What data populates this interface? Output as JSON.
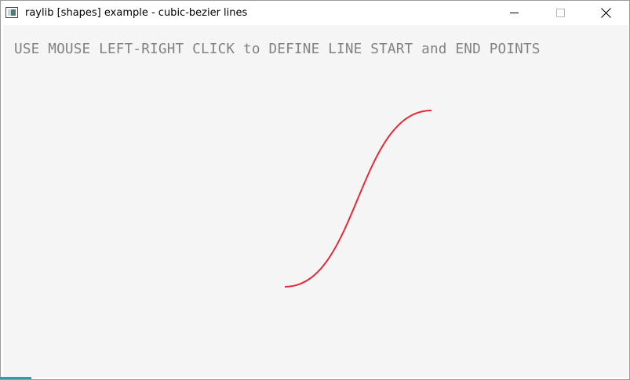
{
  "window": {
    "title": "raylib [shapes] example - cubic-bezier lines"
  },
  "canvas": {
    "instruction": "USE MOUSE LEFT-RIGHT CLICK to DEFINE LINE START and END POINTS",
    "background_color": "#f5f5f5",
    "text_color": "#828282",
    "line_color": "#e62937"
  },
  "icons": {
    "app": "raylib-app-icon",
    "minimize": "minimize-icon",
    "maximize": "maximize-icon",
    "close": "close-icon"
  }
}
